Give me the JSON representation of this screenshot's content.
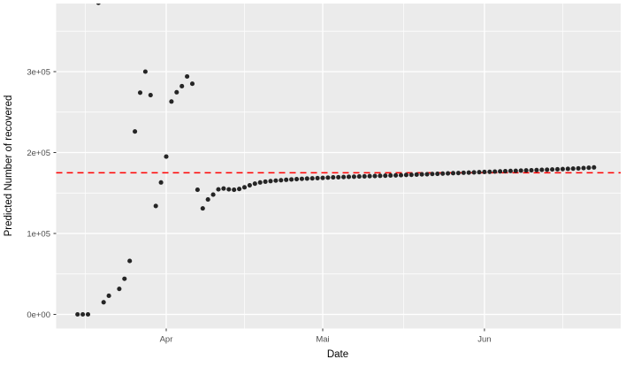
{
  "chart_data": {
    "type": "scatter",
    "title": "",
    "xlabel": "Date",
    "ylabel": "Predicted Number of recovered",
    "legend": "none",
    "grid": true,
    "panel_background": "#EBEBEB",
    "grid_color": "#FFFFFF",
    "point_color": "#252525",
    "tick_label_color": "#4D4D4D",
    "axis_title_color": "#000000",
    "x_axis": {
      "label": "Date",
      "ticks": [
        {
          "label": "Apr",
          "day": 17
        },
        {
          "label": "Mai",
          "day": 47
        },
        {
          "label": "Jun",
          "day": 78
        }
      ],
      "minor_days": [
        1.5,
        32,
        62.5,
        93
      ]
    },
    "y_axis": {
      "label": "Predicted Number of recovered",
      "ticks": [
        {
          "label": "0e+00",
          "value": 0
        },
        {
          "label": "1e+05",
          "value": 100000
        },
        {
          "label": "2e+05",
          "value": 200000
        },
        {
          "label": "3e+05",
          "value": 300000
        }
      ],
      "minor_values": [
        50000,
        150000,
        250000,
        350000
      ],
      "ylim": [
        -19000,
        384000
      ]
    },
    "reference_line": {
      "value": 175000,
      "color": "#FF0000",
      "linetype": "dashed"
    },
    "points": [
      [
        "Mar 15",
        0
      ],
      [
        "Mar 16",
        0
      ],
      [
        "Mar 17",
        0
      ],
      [
        "Mar 19",
        385000
      ],
      [
        "Mar 20",
        15000
      ],
      [
        "Mar 21",
        23000
      ],
      [
        "Mar 23",
        31500
      ],
      [
        "Mar 24",
        44000
      ],
      [
        "Mar 25",
        66000
      ],
      [
        "Mar 26",
        226000
      ],
      [
        "Mar 27",
        274000
      ],
      [
        "Mar 28",
        300000
      ],
      [
        "Mar 29",
        271000
      ],
      [
        "Mar 30",
        134000
      ],
      [
        "Mar 31",
        163000
      ],
      [
        "Apr 1",
        195000
      ],
      [
        "Apr 2",
        263000
      ],
      [
        "Apr 3",
        274500
      ],
      [
        "Apr 4",
        282000
      ],
      [
        "Apr 5",
        294000
      ],
      [
        "Apr 6",
        285000
      ],
      [
        "Apr 7",
        154000
      ],
      [
        "Apr 8",
        131000
      ],
      [
        "Apr 9",
        142000
      ],
      [
        "Apr 10",
        148000
      ],
      [
        "Apr 11",
        154500
      ],
      [
        "Apr 12",
        155500
      ],
      [
        "Apr 13",
        154500
      ],
      [
        "Apr 14",
        154000
      ],
      [
        "Apr 15",
        155000
      ],
      [
        "Apr 16",
        157000
      ],
      [
        "Apr 17",
        159500
      ],
      [
        "Apr 18",
        161500
      ],
      [
        "Apr 19",
        163000
      ],
      [
        "Apr 20",
        164000
      ],
      [
        "Apr 21",
        164700
      ],
      [
        "Apr 22",
        165300
      ],
      [
        "Apr 23",
        165800
      ],
      [
        "Apr 24",
        166300
      ],
      [
        "Apr 25",
        166700
      ],
      [
        "Apr 26",
        167100
      ],
      [
        "Apr 27",
        167500
      ],
      [
        "Apr 28",
        167800
      ],
      [
        "Apr 29",
        168100
      ],
      [
        "Apr 30",
        168400
      ],
      [
        "Mai 1",
        168700
      ],
      [
        "Mai 2",
        169000
      ],
      [
        "Mai 3",
        169300
      ],
      [
        "Mai 4",
        169500
      ],
      [
        "Mai 5",
        169700
      ],
      [
        "Mai 6",
        170000
      ],
      [
        "Mai 7",
        170200
      ],
      [
        "Mai 8",
        170400
      ],
      [
        "Mai 9",
        170600
      ],
      [
        "Mai 10",
        170800
      ],
      [
        "Mai 11",
        171000
      ],
      [
        "Mai 12",
        171200
      ],
      [
        "Mai 13",
        171400
      ],
      [
        "Mai 14",
        171600
      ],
      [
        "Mai 15",
        171800
      ],
      [
        "Mai 16",
        172000
      ],
      [
        "Mai 17",
        172300
      ],
      [
        "Mai 18",
        172500
      ],
      [
        "Mai 19",
        172700
      ],
      [
        "Mai 20",
        173000
      ],
      [
        "Mai 21",
        173200
      ],
      [
        "Mai 22",
        173500
      ],
      [
        "Mai 23",
        173700
      ],
      [
        "Mai 24",
        174000
      ],
      [
        "Mai 25",
        174200
      ],
      [
        "Mai 26",
        174500
      ],
      [
        "Mai 27",
        174700
      ],
      [
        "Mai 28",
        175000
      ],
      [
        "Mai 29",
        175200
      ],
      [
        "Mai 30",
        175500
      ],
      [
        "Mai 31",
        175700
      ],
      [
        "Jun 1",
        176000
      ],
      [
        "Jun 2",
        176200
      ],
      [
        "Jun 3",
        176500
      ],
      [
        "Jun 4",
        176700
      ],
      [
        "Jun 5",
        177000
      ],
      [
        "Jun 6",
        177200
      ],
      [
        "Jun 7",
        177400
      ],
      [
        "Jun 8",
        177700
      ],
      [
        "Jun 9",
        177900
      ],
      [
        "Jun 10",
        178100
      ],
      [
        "Jun 11",
        178400
      ],
      [
        "Jun 12",
        178600
      ],
      [
        "Jun 13",
        178800
      ],
      [
        "Jun 14",
        179100
      ],
      [
        "Jun 15",
        179300
      ],
      [
        "Jun 16",
        179600
      ],
      [
        "Jun 17",
        179800
      ],
      [
        "Jun 18",
        180100
      ],
      [
        "Jun 19",
        180400
      ],
      [
        "Jun 20",
        180800
      ],
      [
        "Jun 21",
        181200
      ],
      [
        "Jun 22",
        181600
      ]
    ]
  }
}
